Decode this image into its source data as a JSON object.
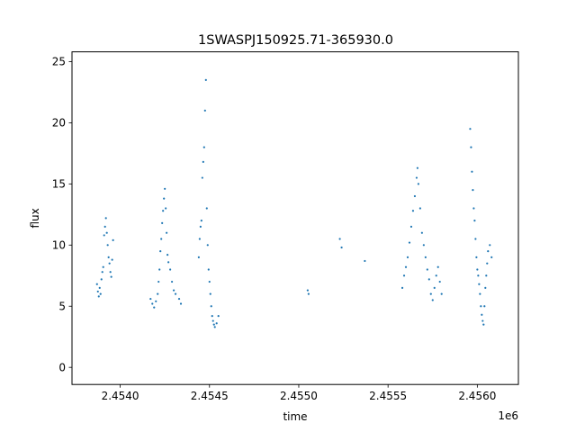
{
  "chart_data": {
    "type": "scatter",
    "title": "1SWASPJ150925.71-365930.0",
    "xlabel": "time",
    "ylabel": "flux",
    "x_offset_label": "1e6",
    "xlim": [
      2453730,
      2456230
    ],
    "ylim": [
      -1.4,
      25.8
    ],
    "xticks": [
      2454000,
      2454500,
      2455000,
      2455500,
      2456000
    ],
    "xtick_labels": [
      "2.4540",
      "2.4545",
      "2.4550",
      "2.4555",
      "2.4560"
    ],
    "yticks": [
      0,
      5,
      10,
      15,
      20,
      25
    ],
    "ytick_labels": [
      "0",
      "5",
      "10",
      "15",
      "20",
      "25"
    ],
    "grid": false,
    "series_color": "#1f77b4",
    "points": [
      [
        2453870,
        6.8
      ],
      [
        2453875,
        6.2
      ],
      [
        2453880,
        5.8
      ],
      [
        2453885,
        6.5
      ],
      [
        2453890,
        6.0
      ],
      [
        2453895,
        7.2
      ],
      [
        2453900,
        7.8
      ],
      [
        2453905,
        8.2
      ],
      [
        2453910,
        10.8
      ],
      [
        2453915,
        11.5
      ],
      [
        2453920,
        12.2
      ],
      [
        2453925,
        11.0
      ],
      [
        2453930,
        10.0
      ],
      [
        2453935,
        9.0
      ],
      [
        2453940,
        8.5
      ],
      [
        2453945,
        7.8
      ],
      [
        2453950,
        7.4
      ],
      [
        2453955,
        8.8
      ],
      [
        2453960,
        10.4
      ],
      [
        2454170,
        5.6
      ],
      [
        2454180,
        5.2
      ],
      [
        2454190,
        4.9
      ],
      [
        2454200,
        5.4
      ],
      [
        2454210,
        6.0
      ],
      [
        2454215,
        7.0
      ],
      [
        2454220,
        8.0
      ],
      [
        2454225,
        9.5
      ],
      [
        2454230,
        10.5
      ],
      [
        2454235,
        11.8
      ],
      [
        2454240,
        12.8
      ],
      [
        2454245,
        13.8
      ],
      [
        2454250,
        14.6
      ],
      [
        2454255,
        13.0
      ],
      [
        2454260,
        11.0
      ],
      [
        2454265,
        9.2
      ],
      [
        2454270,
        8.6
      ],
      [
        2454280,
        8.0
      ],
      [
        2454290,
        7.0
      ],
      [
        2454300,
        6.3
      ],
      [
        2454310,
        6.0
      ],
      [
        2454330,
        5.6
      ],
      [
        2454340,
        5.2
      ],
      [
        2454440,
        9.0
      ],
      [
        2454445,
        10.5
      ],
      [
        2454450,
        11.5
      ],
      [
        2454455,
        12.0
      ],
      [
        2454460,
        15.5
      ],
      [
        2454465,
        16.8
      ],
      [
        2454470,
        18.0
      ],
      [
        2454475,
        21.0
      ],
      [
        2454480,
        23.5
      ],
      [
        2454485,
        13.0
      ],
      [
        2454490,
        10.0
      ],
      [
        2454495,
        8.0
      ],
      [
        2454500,
        7.0
      ],
      [
        2454505,
        6.0
      ],
      [
        2454510,
        5.0
      ],
      [
        2454515,
        4.2
      ],
      [
        2454520,
        3.8
      ],
      [
        2454525,
        3.5
      ],
      [
        2454530,
        3.3
      ],
      [
        2454540,
        3.6
      ],
      [
        2454550,
        4.2
      ],
      [
        2455050,
        6.3
      ],
      [
        2455055,
        6.0
      ],
      [
        2455230,
        10.5
      ],
      [
        2455240,
        9.8
      ],
      [
        2455370,
        8.7
      ],
      [
        2455580,
        6.5
      ],
      [
        2455590,
        7.5
      ],
      [
        2455600,
        8.2
      ],
      [
        2455610,
        9.0
      ],
      [
        2455620,
        10.2
      ],
      [
        2455630,
        11.5
      ],
      [
        2455640,
        12.8
      ],
      [
        2455650,
        14.0
      ],
      [
        2455660,
        15.5
      ],
      [
        2455665,
        16.3
      ],
      [
        2455670,
        15.0
      ],
      [
        2455680,
        13.0
      ],
      [
        2455690,
        11.0
      ],
      [
        2455700,
        10.0
      ],
      [
        2455710,
        9.0
      ],
      [
        2455720,
        8.0
      ],
      [
        2455730,
        7.2
      ],
      [
        2455740,
        6.0
      ],
      [
        2455750,
        5.5
      ],
      [
        2455760,
        6.5
      ],
      [
        2455770,
        7.5
      ],
      [
        2455780,
        8.2
      ],
      [
        2455790,
        7.0
      ],
      [
        2455800,
        6.0
      ],
      [
        2455960,
        19.5
      ],
      [
        2455965,
        18.0
      ],
      [
        2455970,
        16.0
      ],
      [
        2455975,
        14.5
      ],
      [
        2455980,
        13.0
      ],
      [
        2455985,
        12.0
      ],
      [
        2455990,
        10.5
      ],
      [
        2455995,
        9.0
      ],
      [
        2456000,
        8.0
      ],
      [
        2456005,
        7.5
      ],
      [
        2456010,
        6.8
      ],
      [
        2456015,
        6.0
      ],
      [
        2456020,
        5.0
      ],
      [
        2456025,
        4.3
      ],
      [
        2456030,
        3.8
      ],
      [
        2456035,
        3.5
      ],
      [
        2456040,
        5.0
      ],
      [
        2456045,
        6.5
      ],
      [
        2456050,
        7.5
      ],
      [
        2456055,
        8.5
      ],
      [
        2456060,
        9.5
      ],
      [
        2456070,
        10.0
      ],
      [
        2456080,
        9.0
      ]
    ]
  }
}
